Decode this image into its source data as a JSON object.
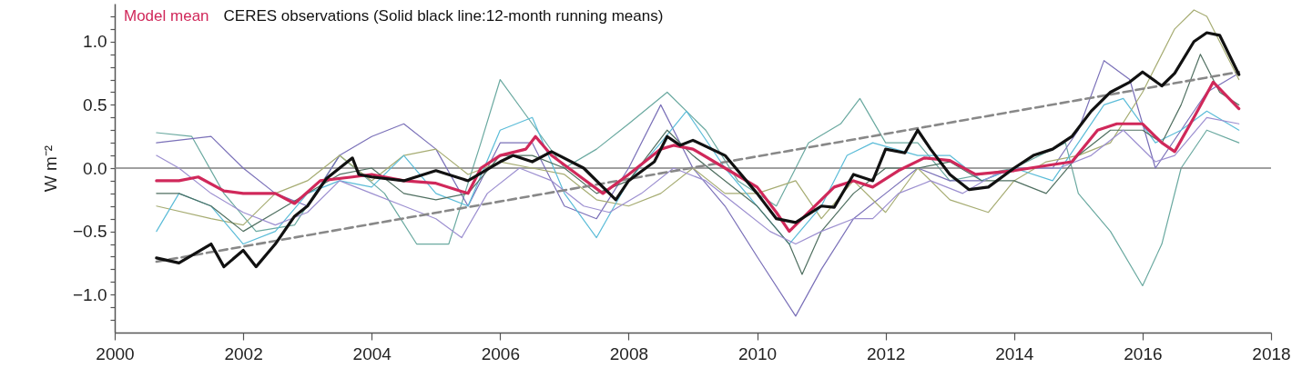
{
  "chart_data": {
    "type": "line",
    "ylabel": "W m⁻²",
    "xlim": [
      2000,
      2018
    ],
    "xticks": [
      2000,
      2002,
      2004,
      2006,
      2008,
      2010,
      2012,
      2014,
      2016,
      2018
    ],
    "ylim": [
      -1.3,
      1.3
    ],
    "yticks": [
      {
        "value": -1.2,
        "label": null
      },
      {
        "value": -1.1,
        "label": null
      },
      {
        "value": -1,
        "label": "−1.0"
      },
      {
        "value": -0.9,
        "label": null
      },
      {
        "value": -0.8,
        "label": null
      },
      {
        "value": -0.7,
        "label": null
      },
      {
        "value": -0.6,
        "label": null
      },
      {
        "value": -0.5,
        "label": "−0.5"
      },
      {
        "value": -0.4,
        "label": null
      },
      {
        "value": -0.3,
        "label": null
      },
      {
        "value": -0.2,
        "label": null
      },
      {
        "value": -0.1,
        "label": null
      },
      {
        "value": 0,
        "label": "0.0"
      },
      {
        "value": 0.1,
        "label": null
      },
      {
        "value": 0.2,
        "label": null
      },
      {
        "value": 0.3,
        "label": null
      },
      {
        "value": 0.4,
        "label": null
      },
      {
        "value": 0.5,
        "label": "0.5"
      },
      {
        "value": 0.6,
        "label": null
      },
      {
        "value": 0.7,
        "label": null
      },
      {
        "value": 0.8,
        "label": null
      },
      {
        "value": 0.9,
        "label": null
      },
      {
        "value": 1,
        "label": "1.0"
      },
      {
        "value": 1.1,
        "label": null
      },
      {
        "value": 1.2,
        "label": null
      }
    ],
    "grid": false,
    "legend": "top left",
    "marker": "none",
    "ref_lines": [
      {
        "axis": "y",
        "value": 0,
        "color": "#808080"
      }
    ],
    "series": [
      {
        "color": "#6aa9a0",
        "x": [
          2000.65,
          2001.2,
          2001.7,
          2002.2,
          2002.8,
          2003.5,
          2004.2,
          2004.7,
          2005.2,
          2005.7,
          2006.0,
          2006.5,
          2007.0,
          2007.5,
          2008.0,
          2008.6,
          2009.2,
          2009.7,
          2010.3,
          2010.8,
          2011.3,
          2011.6,
          2012.0,
          2012.5,
          2013.0,
          2014.0,
          2014.8,
          2015.0,
          2015.5,
          2016.0,
          2016.3,
          2016.6,
          2017.0,
          2017.5
        ],
        "values": [
          0.28,
          0.25,
          -0.2,
          -0.5,
          -0.45,
          0.1,
          -0.2,
          -0.6,
          -0.6,
          0.2,
          0.7,
          0.35,
          0.0,
          0.15,
          0.35,
          0.6,
          0.3,
          -0.1,
          -0.3,
          0.2,
          0.35,
          0.55,
          0.2,
          0.2,
          -0.1,
          0.0,
          0.2,
          -0.2,
          -0.5,
          -0.93,
          -0.6,
          0.0,
          0.3,
          0.2
        ]
      },
      {
        "color": "#7a70b8",
        "x": [
          2000.65,
          2001.5,
          2002.0,
          2002.5,
          2003.0,
          2003.5,
          2004.0,
          2004.5,
          2005.0,
          2005.5,
          2006.0,
          2006.5,
          2007.0,
          2007.5,
          2008.0,
          2008.5,
          2009.0,
          2009.5,
          2010.0,
          2010.6,
          2011.0,
          2011.5,
          2012.0,
          2012.5,
          2013.0,
          2013.5,
          2014.0,
          2014.6,
          2015.0,
          2015.4,
          2015.8,
          2016.2,
          2016.6,
          2017.0,
          2017.5
        ],
        "values": [
          0.2,
          0.25,
          0.0,
          -0.2,
          -0.3,
          0.1,
          0.25,
          0.35,
          0.15,
          -0.3,
          0.2,
          0.2,
          -0.3,
          -0.4,
          0.0,
          0.5,
          0.0,
          -0.3,
          -0.7,
          -1.17,
          -0.8,
          -0.4,
          -0.2,
          0.0,
          -0.1,
          -0.1,
          0.0,
          0.0,
          0.3,
          0.85,
          0.7,
          0.0,
          0.3,
          0.6,
          0.75
        ]
      },
      {
        "color": "#a6ac72",
        "x": [
          2000.65,
          2001.5,
          2002.0,
          2002.5,
          2003.0,
          2003.5,
          2004.0,
          2004.5,
          2005.0,
          2005.5,
          2006.0,
          2006.5,
          2007.0,
          2007.5,
          2008.0,
          2008.5,
          2009.0,
          2009.5,
          2010.0,
          2010.6,
          2011.0,
          2011.5,
          2012.0,
          2012.5,
          2013.0,
          2013.6,
          2014.0,
          2014.5,
          2015.0,
          2015.5,
          2016.0,
          2016.5,
          2016.8,
          2017.0,
          2017.5
        ],
        "values": [
          -0.3,
          -0.4,
          -0.45,
          -0.2,
          -0.1,
          0.1,
          -0.1,
          0.1,
          0.15,
          -0.05,
          0.05,
          0.0,
          -0.05,
          -0.25,
          -0.3,
          -0.2,
          0.0,
          -0.2,
          -0.2,
          -0.1,
          -0.4,
          -0.1,
          -0.35,
          0.0,
          -0.25,
          -0.35,
          -0.1,
          0.05,
          0.1,
          0.2,
          0.6,
          1.1,
          1.25,
          1.2,
          0.7
        ]
      },
      {
        "color": "#5bbcd8",
        "x": [
          2000.65,
          2001.0,
          2001.5,
          2002.0,
          2002.5,
          2003.0,
          2003.5,
          2004.0,
          2004.5,
          2005.0,
          2005.5,
          2006.0,
          2006.5,
          2007.0,
          2007.5,
          2008.0,
          2008.5,
          2008.9,
          2009.5,
          2010.0,
          2010.5,
          2011.0,
          2011.4,
          2011.8,
          2012.5,
          2013.0,
          2013.5,
          2014.0,
          2014.6,
          2015.0,
          2015.4,
          2015.7,
          2016.2,
          2016.6,
          2017.0,
          2017.5
        ],
        "values": [
          -0.5,
          -0.2,
          -0.3,
          -0.6,
          -0.5,
          -0.2,
          -0.1,
          -0.15,
          0.1,
          -0.2,
          -0.3,
          0.3,
          0.4,
          -0.2,
          -0.55,
          -0.1,
          0.2,
          0.45,
          0.0,
          -0.3,
          -0.6,
          -0.3,
          0.1,
          0.2,
          0.1,
          0.1,
          -0.1,
          0.0,
          -0.1,
          0.2,
          0.5,
          0.55,
          0.2,
          0.3,
          0.45,
          0.3
        ]
      },
      {
        "color": "#4f6f60",
        "x": [
          2000.65,
          2001.0,
          2001.5,
          2002.0,
          2002.5,
          2003.0,
          2003.5,
          2004.0,
          2004.5,
          2005.0,
          2005.5,
          2006.0,
          2006.5,
          2007.0,
          2007.5,
          2008.0,
          2008.6,
          2009.0,
          2009.5,
          2010.0,
          2010.5,
          2010.7,
          2011.0,
          2011.5,
          2012.0,
          2012.5,
          2013.0,
          2013.5,
          2014.0,
          2014.5,
          2015.0,
          2015.5,
          2016.0,
          2016.3,
          2016.6,
          2016.9,
          2017.2,
          2017.5
        ],
        "values": [
          -0.2,
          -0.2,
          -0.3,
          -0.5,
          -0.35,
          -0.2,
          -0.05,
          0.0,
          -0.2,
          -0.25,
          -0.2,
          0.1,
          0.1,
          0.0,
          -0.2,
          -0.1,
          0.3,
          0.1,
          -0.1,
          -0.3,
          -0.6,
          -0.84,
          -0.5,
          -0.2,
          0.0,
          0.0,
          0.05,
          -0.1,
          -0.1,
          -0.2,
          0.1,
          0.3,
          0.3,
          0.2,
          0.5,
          0.9,
          0.6,
          0.5
        ]
      },
      {
        "color": "#9c8fd0",
        "x": [
          2000.65,
          2001.0,
          2001.5,
          2002.0,
          2002.5,
          2003.0,
          2003.5,
          2004.0,
          2004.5,
          2005.0,
          2005.4,
          2005.8,
          2006.3,
          2006.8,
          2007.3,
          2007.7,
          2008.2,
          2008.7,
          2009.2,
          2009.7,
          2010.2,
          2010.6,
          2011.0,
          2011.5,
          2011.8,
          2012.2,
          2012.7,
          2013.2,
          2013.7,
          2014.2,
          2014.7,
          2015.2,
          2015.7,
          2016.2,
          2016.5,
          2017.0,
          2017.5
        ],
        "values": [
          0.1,
          0.0,
          -0.2,
          -0.35,
          -0.45,
          -0.35,
          -0.1,
          -0.2,
          -0.3,
          -0.4,
          -0.55,
          -0.2,
          0.0,
          -0.1,
          -0.3,
          -0.35,
          -0.2,
          0.0,
          -0.1,
          -0.3,
          -0.5,
          -0.6,
          -0.5,
          -0.4,
          -0.4,
          -0.2,
          -0.1,
          -0.2,
          -0.05,
          0.0,
          0.0,
          0.1,
          0.3,
          0.05,
          0.1,
          0.4,
          0.35
        ]
      },
      {
        "color": "#888888",
        "line_style": "dashed",
        "x": [
          2000.65,
          2017.5
        ],
        "values": [
          -0.74,
          0.76
        ]
      },
      {
        "name": "Model mean",
        "color": "#d0285a",
        "x": [
          2000.65,
          2001.0,
          2001.3,
          2001.7,
          2002.0,
          2002.5,
          2002.8,
          2003.2,
          2003.7,
          2004.0,
          2004.5,
          2005.0,
          2005.5,
          2005.7,
          2006.0,
          2006.4,
          2006.55,
          2006.8,
          2007.2,
          2007.6,
          2008.0,
          2008.5,
          2008.7,
          2009.0,
          2009.5,
          2010.0,
          2010.3,
          2010.5,
          2010.8,
          2011.2,
          2011.5,
          2011.8,
          2012.2,
          2012.6,
          2013.0,
          2013.4,
          2014.0,
          2014.5,
          2014.9,
          2015.3,
          2015.6,
          2016.0,
          2016.3,
          2016.5,
          2016.8,
          2017.1,
          2017.5
        ],
        "values": [
          -0.1,
          -0.1,
          -0.07,
          -0.18,
          -0.2,
          -0.2,
          -0.28,
          -0.1,
          -0.07,
          -0.05,
          -0.1,
          -0.12,
          -0.2,
          0.0,
          0.1,
          0.15,
          0.25,
          0.1,
          -0.05,
          -0.2,
          -0.05,
          0.15,
          0.18,
          0.15,
          0.0,
          -0.15,
          -0.35,
          -0.5,
          -0.35,
          -0.15,
          -0.1,
          -0.15,
          -0.02,
          0.08,
          0.06,
          -0.05,
          -0.02,
          0.02,
          0.05,
          0.3,
          0.35,
          0.35,
          0.2,
          0.13,
          0.4,
          0.68,
          0.47
        ]
      },
      {
        "name": "CERES observations (Solid black line:12-month running means)",
        "color": "#111111",
        "x": [
          2000.65,
          2001.0,
          2001.5,
          2001.7,
          2002.0,
          2002.2,
          2002.5,
          2002.8,
          2003.0,
          2003.3,
          2003.7,
          2003.8,
          2004.0,
          2004.5,
          2005.0,
          2005.5,
          2006.0,
          2006.2,
          2006.5,
          2006.8,
          2007.3,
          2007.8,
          2008.0,
          2008.4,
          2008.6,
          2008.8,
          2009.0,
          2009.5,
          2010.0,
          2010.3,
          2010.6,
          2011.0,
          2011.2,
          2011.5,
          2011.8,
          2012.0,
          2012.3,
          2012.5,
          2012.7,
          2013.0,
          2013.3,
          2013.6,
          2014.0,
          2014.3,
          2014.6,
          2014.9,
          2015.2,
          2015.5,
          2015.8,
          2016.0,
          2016.3,
          2016.5,
          2016.8,
          2017.0,
          2017.2,
          2017.5
        ],
        "values": [
          -0.71,
          -0.75,
          -0.6,
          -0.78,
          -0.65,
          -0.78,
          -0.6,
          -0.38,
          -0.3,
          -0.08,
          0.08,
          -0.05,
          -0.07,
          -0.1,
          -0.02,
          -0.1,
          0.05,
          0.1,
          0.05,
          0.13,
          0.0,
          -0.25,
          -0.1,
          0.05,
          0.25,
          0.18,
          0.22,
          0.1,
          -0.2,
          -0.4,
          -0.43,
          -0.3,
          -0.31,
          -0.05,
          -0.1,
          0.15,
          0.12,
          0.3,
          0.15,
          -0.05,
          -0.17,
          -0.15,
          0.0,
          0.1,
          0.15,
          0.25,
          0.45,
          0.6,
          0.68,
          0.76,
          0.65,
          0.75,
          1.0,
          1.07,
          1.05,
          0.74
        ]
      }
    ]
  }
}
